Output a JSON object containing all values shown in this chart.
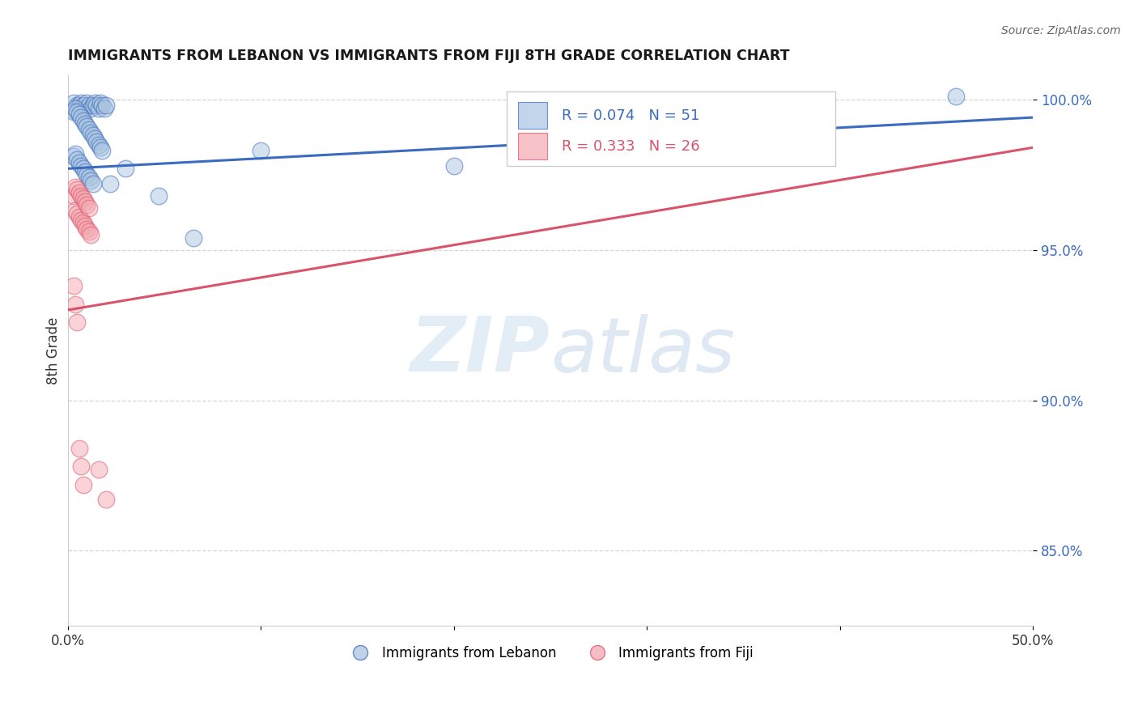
{
  "title": "IMMIGRANTS FROM LEBANON VS IMMIGRANTS FROM FIJI 8TH GRADE CORRELATION CHART",
  "source": "Source: ZipAtlas.com",
  "ylabel": "8th Grade",
  "xlim": [
    0.0,
    0.5
  ],
  "ylim": [
    0.825,
    1.008
  ],
  "y_ticks": [
    0.85,
    0.9,
    0.95,
    1.0
  ],
  "y_tick_labels": [
    "85.0%",
    "90.0%",
    "95.0%",
    "100.0%"
  ],
  "x_ticks": [
    0.0,
    0.1,
    0.2,
    0.3,
    0.4,
    0.5
  ],
  "x_tick_labels": [
    "0.0%",
    "",
    "",
    "",
    "",
    "50.0%"
  ],
  "legend_r1_text": "R = 0.074   N = 51",
  "legend_r2_text": "R = 0.333   N = 26",
  "legend_label1": "Immigrants from Lebanon",
  "legend_label2": "Immigrants from Fiji",
  "blue_color": "#aac4e0",
  "pink_color": "#f4a8b0",
  "line_blue": "#3a6bbf",
  "line_pink": "#d9536a",
  "text_blue": "#3a6bbf",
  "text_pink": "#d9536a",
  "blue_scatter_x": [
    0.003,
    0.005,
    0.006,
    0.007,
    0.008,
    0.009,
    0.01,
    0.011,
    0.012,
    0.013,
    0.014,
    0.015,
    0.016,
    0.017,
    0.018,
    0.019,
    0.02,
    0.003,
    0.004,
    0.005,
    0.006,
    0.007,
    0.008,
    0.009,
    0.01,
    0.011,
    0.012,
    0.013,
    0.014,
    0.015,
    0.016,
    0.017,
    0.018,
    0.003,
    0.004,
    0.005,
    0.006,
    0.007,
    0.008,
    0.009,
    0.01,
    0.011,
    0.012,
    0.013,
    0.022,
    0.03,
    0.047,
    0.1,
    0.46,
    0.2,
    0.065
  ],
  "blue_scatter_y": [
    0.999,
    0.998,
    0.998,
    0.999,
    0.998,
    0.997,
    0.999,
    0.998,
    0.997,
    0.998,
    0.999,
    0.998,
    0.997,
    0.999,
    0.998,
    0.997,
    0.998,
    0.996,
    0.997,
    0.996,
    0.995,
    0.994,
    0.993,
    0.992,
    0.991,
    0.99,
    0.989,
    0.988,
    0.987,
    0.986,
    0.985,
    0.984,
    0.983,
    0.981,
    0.982,
    0.98,
    0.979,
    0.978,
    0.977,
    0.976,
    0.975,
    0.974,
    0.973,
    0.972,
    0.972,
    0.977,
    0.968,
    0.983,
    1.001,
    0.978,
    0.954
  ],
  "pink_scatter_x": [
    0.003,
    0.004,
    0.004,
    0.005,
    0.005,
    0.006,
    0.006,
    0.007,
    0.007,
    0.008,
    0.008,
    0.009,
    0.009,
    0.01,
    0.01,
    0.011,
    0.011,
    0.012,
    0.003,
    0.004,
    0.005,
    0.006,
    0.007,
    0.008,
    0.016,
    0.02
  ],
  "pink_scatter_y": [
    0.968,
    0.963,
    0.971,
    0.962,
    0.97,
    0.961,
    0.969,
    0.96,
    0.968,
    0.959,
    0.967,
    0.958,
    0.966,
    0.957,
    0.965,
    0.956,
    0.964,
    0.955,
    0.938,
    0.932,
    0.926,
    0.884,
    0.878,
    0.872,
    0.877,
    0.867
  ],
  "blue_line_x": [
    0.0,
    0.5
  ],
  "blue_line_y": [
    0.977,
    0.994
  ],
  "pink_line_x": [
    0.0,
    0.5
  ],
  "pink_line_y": [
    0.93,
    0.984
  ]
}
